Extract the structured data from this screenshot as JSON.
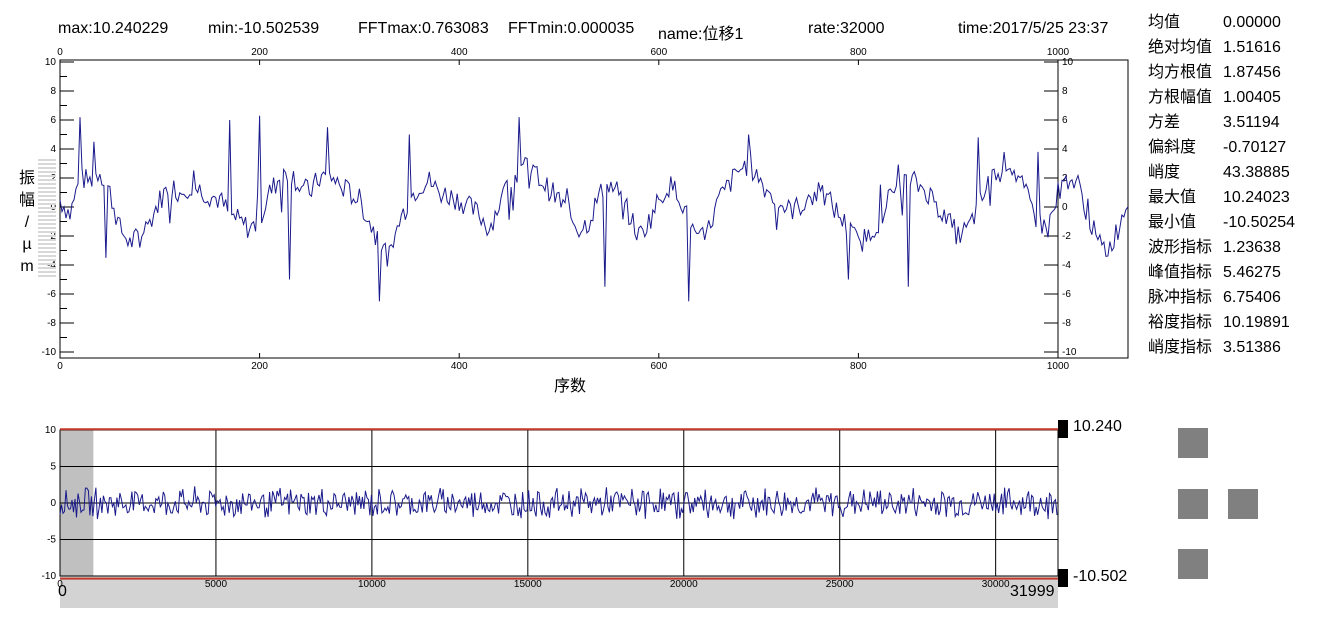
{
  "header": {
    "max": "max:10.240229",
    "min": "min:-10.502539",
    "fftmax": "FFTmax:0.763083",
    "fftmin": "FFTmin:0.000035",
    "name": "name:位移1",
    "rate": "rate:32000",
    "time": "time:2017/5/25 23:37"
  },
  "stats": [
    {
      "label": "均值",
      "value": "0.00000"
    },
    {
      "label": "绝对均值",
      "value": "1.51616"
    },
    {
      "label": "均方根值",
      "value": "1.87456"
    },
    {
      "label": "方根幅值",
      "value": "1.00405"
    },
    {
      "label": "方差",
      "value": "3.51194"
    },
    {
      "label": "偏斜度",
      "value": "-0.70127"
    },
    {
      "label": "峭度",
      "value": "43.38885"
    },
    {
      "label": "最大值",
      "value": "10.24023"
    },
    {
      "label": "最小值",
      "value": "-10.50254"
    },
    {
      "label": "波形指标",
      "value": "1.23638"
    },
    {
      "label": "峰值指标",
      "value": "5.46275"
    },
    {
      "label": "脉冲指标",
      "value": "6.75406"
    },
    {
      "label": "裕度指标",
      "value": "10.19891"
    },
    {
      "label": "峭度指标",
      "value": "3.51386"
    }
  ],
  "colors": {
    "signal": "#1a1a8c",
    "threshold": "#c0392b",
    "window": "#c0c0c0",
    "buttons": "#808080"
  },
  "chart_data": [
    {
      "type": "line",
      "title": "",
      "ylabel": "振幅/µm",
      "xlabel": "序数",
      "xlim": [
        0,
        1070
      ],
      "ylim": [
        -10.5,
        10.5
      ],
      "x_ticks": [
        "0",
        "200",
        "400",
        "600",
        "800",
        "1000"
      ],
      "y_ticks": [
        "10",
        "8",
        "6",
        "4",
        "2",
        "0",
        "-2",
        "-4",
        "-6",
        "-8",
        "-10"
      ],
      "grid": false,
      "series": [
        {
          "x": [
            0,
            10,
            20,
            30,
            40,
            50,
            60,
            70,
            80,
            90,
            100,
            110,
            120,
            130,
            140,
            150,
            160,
            170,
            180,
            190,
            200,
            210,
            220,
            230,
            240,
            250,
            260,
            270,
            280,
            290,
            300,
            310,
            320,
            330,
            340,
            350,
            360,
            370,
            380,
            390,
            400,
            410,
            420,
            430,
            440,
            450,
            460,
            470,
            480,
            490,
            500,
            510,
            520,
            530,
            540,
            550,
            560,
            570,
            580,
            590,
            600,
            610,
            620,
            630,
            640,
            650,
            660,
            670,
            680,
            690,
            700,
            710,
            720,
            730,
            740,
            750,
            760,
            770,
            780,
            790,
            800,
            810,
            820,
            830,
            840,
            850,
            860,
            870,
            880,
            890,
            900,
            910,
            920,
            930,
            940,
            950,
            960,
            970,
            980,
            990,
            1000,
            1010,
            1020,
            1030,
            1040,
            1050,
            1060,
            1070
          ],
          "values": [
            0.5,
            -0.5,
            2,
            1.8,
            2.5,
            1,
            -1.5,
            -2.5,
            -2,
            -1,
            0.5,
            1.5,
            1,
            1.5,
            1.2,
            0.8,
            0.5,
            -0.5,
            -1,
            -1.5,
            -1,
            1,
            2,
            2.5,
            1.5,
            1,
            2,
            2.2,
            1.5,
            1,
            0.5,
            -1,
            -2.5,
            -3.5,
            -1,
            0.5,
            1.5,
            1.8,
            1,
            0.8,
            0.5,
            0,
            -0.5,
            -1.5,
            0.2,
            1.5,
            2.5,
            2.8,
            2,
            1.2,
            0.5,
            -0.5,
            -1.5,
            -1,
            0.8,
            1.5,
            1,
            -0.5,
            -2,
            -1,
            0.5,
            1.5,
            1,
            -1,
            -2.5,
            -1.5,
            0.5,
            1.5,
            2.5,
            3,
            2,
            1,
            0.3,
            -0.2,
            0,
            0.5,
            1,
            0.5,
            -0.5,
            -1.5,
            -2.5,
            -2,
            -1,
            0.5,
            1.5,
            2,
            1.5,
            1,
            0,
            -1,
            -2,
            -1.5,
            0,
            1.5,
            2.8,
            3.2,
            2,
            0.5,
            -1,
            -1.5,
            1,
            2,
            1.5,
            -0.5,
            -2.5,
            -3,
            -1.5,
            0.5
          ],
          "spikes": [
            {
              "x": 20,
              "y": 6.2
            },
            {
              "x": 34,
              "y": 4.5
            },
            {
              "x": 45,
              "y": -3.5
            },
            {
              "x": 170,
              "y": 6.0
            },
            {
              "x": 200,
              "y": 6.3
            },
            {
              "x": 230,
              "y": -5.0
            },
            {
              "x": 268,
              "y": 5.5
            },
            {
              "x": 320,
              "y": -6.5
            },
            {
              "x": 350,
              "y": 5.0
            },
            {
              "x": 460,
              "y": 6.2
            },
            {
              "x": 545,
              "y": -5.5
            },
            {
              "x": 630,
              "y": -6.5
            },
            {
              "x": 690,
              "y": 5.0
            },
            {
              "x": 790,
              "y": -5.0
            },
            {
              "x": 850,
              "y": -5.5
            },
            {
              "x": 920,
              "y": 4.8
            },
            {
              "x": 980,
              "y": 3.8
            }
          ]
        }
      ]
    },
    {
      "type": "line",
      "title": "",
      "xlabel": "",
      "ylabel": "",
      "xlim": [
        0,
        31999
      ],
      "ylim": [
        -10,
        10
      ],
      "x_ticks": [
        "0",
        "5000",
        "10000",
        "15000",
        "20000",
        "25000",
        "30000"
      ],
      "y_ticks": [
        "10",
        "5",
        "0",
        "-5",
        "-10"
      ],
      "x_start_label": "0",
      "x_end_label": "31999",
      "max_marker": "10.240",
      "min_marker": "-10.502",
      "threshold_high": 10.24,
      "threshold_low": -10.502,
      "selection_window": [
        0,
        1070
      ],
      "grid": true,
      "series": [
        {
          "envelope_amplitude": 2.0
        }
      ]
    }
  ]
}
